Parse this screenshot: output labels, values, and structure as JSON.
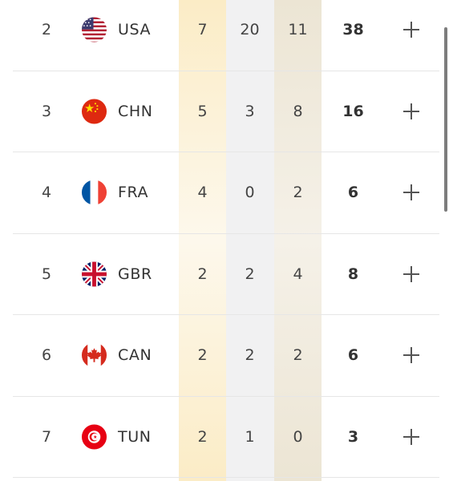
{
  "columns": {
    "gold_color": "#fbecc6",
    "silver_color": "#f1f1f2",
    "bronze_color": "#ece5d4"
  },
  "rows": [
    {
      "rank": "2",
      "country": "USA",
      "flag": "usa-flag-icon",
      "gold": "7",
      "silver": "20",
      "bronze": "11",
      "total": "38"
    },
    {
      "rank": "3",
      "country": "CHN",
      "flag": "china-flag-icon",
      "gold": "5",
      "silver": "3",
      "bronze": "8",
      "total": "16"
    },
    {
      "rank": "4",
      "country": "FRA",
      "flag": "france-flag-icon",
      "gold": "4",
      "silver": "0",
      "bronze": "2",
      "total": "6"
    },
    {
      "rank": "5",
      "country": "GBR",
      "flag": "uk-flag-icon",
      "gold": "2",
      "silver": "2",
      "bronze": "4",
      "total": "8"
    },
    {
      "rank": "6",
      "country": "CAN",
      "flag": "canada-flag-icon",
      "gold": "2",
      "silver": "2",
      "bronze": "2",
      "total": "6"
    },
    {
      "rank": "7",
      "country": "TUN",
      "flag": "tunisia-flag-icon",
      "gold": "2",
      "silver": "1",
      "bronze": "0",
      "total": "3"
    }
  ],
  "expand_icon": "plus-icon"
}
